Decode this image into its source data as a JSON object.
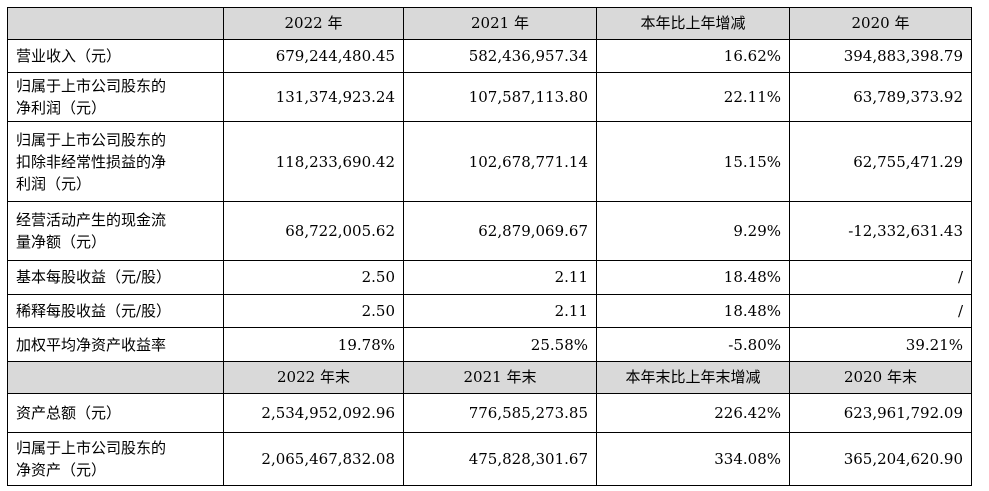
{
  "header1": [
    "",
    "2022 年",
    "2021 年",
    "本年比上年增减",
    "2020 年"
  ],
  "rows1": [
    {
      "label_lines": [
        "营业收入（元）"
      ],
      "values": [
        "679,244,480.45",
        "582,436,957.34",
        "16.62%",
        "394,883,398.79"
      ]
    },
    {
      "label_lines": [
        "归属于上市公司股东的",
        "净利润（元）"
      ],
      "values": [
        "131,374,923.24",
        "107,587,113.80",
        "22.11%",
        "63,789,373.92"
      ]
    },
    {
      "label_lines": [
        "归属于上市公司股东的",
        "扣除非经常性损益的净",
        "利润（元）"
      ],
      "values": [
        "118,233,690.42",
        "102,678,771.14",
        "15.15%",
        "62,755,471.29"
      ]
    },
    {
      "label_lines": [
        "经营活动产生的现金流",
        "量净额（元）"
      ],
      "values": [
        "68,722,005.62",
        "62,879,069.67",
        "9.29%",
        "-12,332,631.43"
      ]
    },
    {
      "label_lines": [
        "基本每股收益（元/股）"
      ],
      "values": [
        "2.50",
        "2.11",
        "18.48%",
        "/"
      ]
    },
    {
      "label_lines": [
        "稀释每股收益（元/股）"
      ],
      "values": [
        "2.50",
        "2.11",
        "18.48%",
        "/"
      ]
    },
    {
      "label_lines": [
        "加权平均净资产收益率"
      ],
      "values": [
        "19.78%",
        "25.58%",
        "-5.80%",
        "39.21%"
      ]
    }
  ],
  "header2": [
    "",
    "2022 年末",
    "2021 年末",
    "本年末比上年末增减",
    "2020 年末"
  ],
  "rows2": [
    {
      "label_lines": [
        "资产总额（元）"
      ],
      "values": [
        "2,534,952,092.96",
        "776,585,273.85",
        "226.42%",
        "623,961,792.09"
      ]
    },
    {
      "label_lines": [
        "归属于上市公司股东的",
        "净资产（元）"
      ],
      "values": [
        "2,065,467,832.08",
        "475,828,301.67",
        "334.08%",
        "365,204,620.90"
      ]
    }
  ]
}
